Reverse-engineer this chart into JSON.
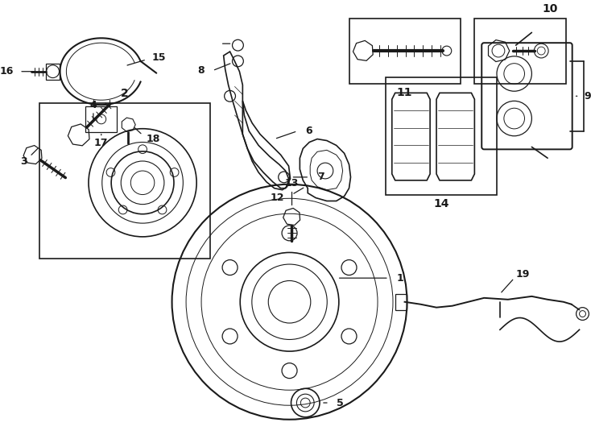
{
  "bg_color": "#ffffff",
  "line_color": "#1a1a1a",
  "figsize": [
    7.34,
    5.4
  ],
  "dpi": 100,
  "xlim": [
    0,
    734
  ],
  "ylim": [
    0,
    540
  ]
}
